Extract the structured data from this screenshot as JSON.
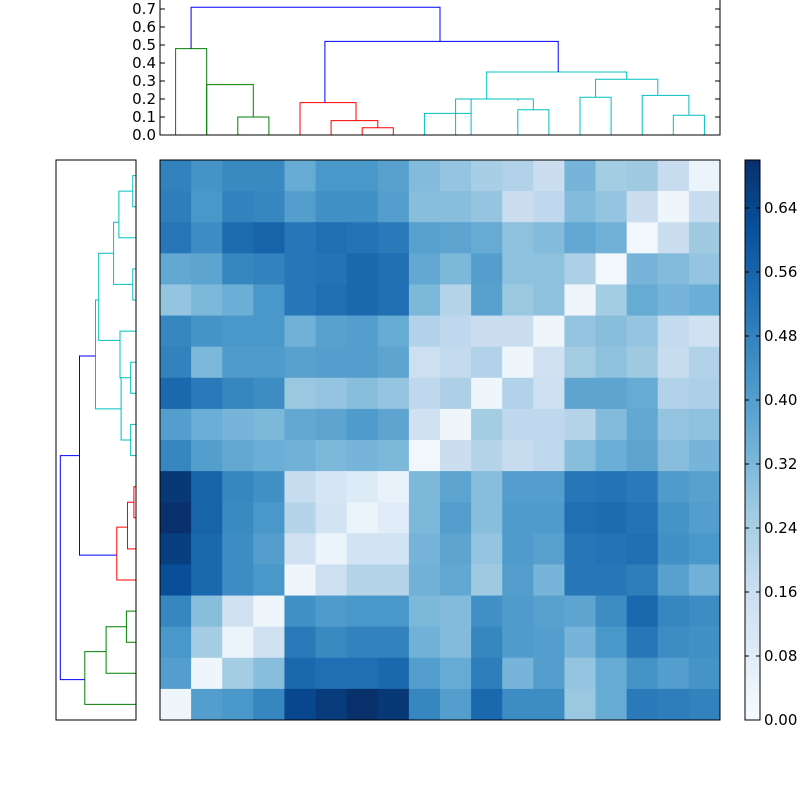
{
  "chart_data": {
    "type": "heatmap",
    "title": "",
    "xlabel": "",
    "ylabel": "",
    "colormap": "Blues",
    "colorbar": {
      "vmin": 0.0,
      "vmax": 0.7,
      "ticks": [
        0.0,
        0.08,
        0.16,
        0.24,
        0.32,
        0.4,
        0.48,
        0.56,
        0.64
      ],
      "tick_labels": [
        "0.00",
        "0.08",
        "0.16",
        "0.24",
        "0.32",
        "0.40",
        "0.48",
        "0.56",
        "0.64"
      ]
    },
    "matrix": [
      [
        0.48,
        0.43,
        0.46,
        0.46,
        0.36,
        0.42,
        0.42,
        0.39,
        0.31,
        0.28,
        0.24,
        0.22,
        0.16,
        0.33,
        0.25,
        0.26,
        0.17,
        0.04
      ],
      [
        0.49,
        0.42,
        0.48,
        0.47,
        0.4,
        0.44,
        0.44,
        0.4,
        0.3,
        0.3,
        0.28,
        0.16,
        0.19,
        0.31,
        0.28,
        0.16,
        0.03,
        0.17
      ],
      [
        0.51,
        0.45,
        0.54,
        0.56,
        0.51,
        0.53,
        0.52,
        0.5,
        0.39,
        0.38,
        0.36,
        0.29,
        0.31,
        0.37,
        0.34,
        0.02,
        0.16,
        0.26
      ],
      [
        0.37,
        0.38,
        0.47,
        0.48,
        0.51,
        0.52,
        0.55,
        0.53,
        0.37,
        0.32,
        0.4,
        0.29,
        0.29,
        0.23,
        0.02,
        0.33,
        0.31,
        0.28
      ],
      [
        0.28,
        0.32,
        0.35,
        0.42,
        0.51,
        0.53,
        0.55,
        0.53,
        0.32,
        0.21,
        0.39,
        0.27,
        0.29,
        0.03,
        0.25,
        0.36,
        0.33,
        0.35
      ],
      [
        0.47,
        0.43,
        0.42,
        0.42,
        0.34,
        0.39,
        0.4,
        0.36,
        0.22,
        0.19,
        0.16,
        0.16,
        0.03,
        0.28,
        0.3,
        0.28,
        0.18,
        0.14
      ],
      [
        0.48,
        0.32,
        0.41,
        0.41,
        0.39,
        0.4,
        0.4,
        0.38,
        0.15,
        0.18,
        0.22,
        0.03,
        0.14,
        0.25,
        0.29,
        0.26,
        0.17,
        0.22
      ],
      [
        0.55,
        0.5,
        0.47,
        0.45,
        0.27,
        0.28,
        0.3,
        0.28,
        0.19,
        0.23,
        0.03,
        0.22,
        0.15,
        0.38,
        0.38,
        0.36,
        0.22,
        0.23
      ],
      [
        0.4,
        0.35,
        0.33,
        0.32,
        0.37,
        0.38,
        0.41,
        0.38,
        0.14,
        0.03,
        0.25,
        0.19,
        0.19,
        0.21,
        0.31,
        0.37,
        0.28,
        0.29
      ],
      [
        0.47,
        0.4,
        0.37,
        0.35,
        0.34,
        0.32,
        0.33,
        0.32,
        0.02,
        0.16,
        0.21,
        0.17,
        0.19,
        0.3,
        0.35,
        0.38,
        0.3,
        0.33
      ],
      [
        0.68,
        0.56,
        0.47,
        0.44,
        0.17,
        0.12,
        0.09,
        0.05,
        0.32,
        0.38,
        0.3,
        0.4,
        0.4,
        0.51,
        0.52,
        0.5,
        0.41,
        0.39
      ],
      [
        0.7,
        0.56,
        0.46,
        0.42,
        0.21,
        0.13,
        0.04,
        0.08,
        0.32,
        0.4,
        0.3,
        0.41,
        0.41,
        0.53,
        0.54,
        0.52,
        0.43,
        0.4
      ],
      [
        0.66,
        0.55,
        0.45,
        0.4,
        0.14,
        0.04,
        0.13,
        0.13,
        0.33,
        0.38,
        0.28,
        0.41,
        0.39,
        0.51,
        0.52,
        0.53,
        0.44,
        0.42
      ],
      [
        0.62,
        0.55,
        0.45,
        0.42,
        0.03,
        0.15,
        0.21,
        0.21,
        0.34,
        0.37,
        0.26,
        0.4,
        0.33,
        0.51,
        0.51,
        0.49,
        0.39,
        0.34
      ],
      [
        0.47,
        0.3,
        0.14,
        0.03,
        0.44,
        0.41,
        0.42,
        0.42,
        0.32,
        0.31,
        0.44,
        0.41,
        0.39,
        0.38,
        0.45,
        0.55,
        0.47,
        0.45
      ],
      [
        0.42,
        0.25,
        0.04,
        0.14,
        0.5,
        0.46,
        0.48,
        0.48,
        0.34,
        0.31,
        0.47,
        0.41,
        0.4,
        0.33,
        0.42,
        0.51,
        0.45,
        0.44
      ],
      [
        0.4,
        0.03,
        0.25,
        0.3,
        0.55,
        0.53,
        0.53,
        0.55,
        0.4,
        0.36,
        0.49,
        0.33,
        0.4,
        0.28,
        0.36,
        0.43,
        0.4,
        0.43
      ],
      [
        0.03,
        0.4,
        0.42,
        0.47,
        0.64,
        0.67,
        0.7,
        0.68,
        0.47,
        0.4,
        0.55,
        0.45,
        0.45,
        0.27,
        0.36,
        0.5,
        0.49,
        0.48
      ]
    ],
    "top_dendrogram": {
      "ylim": [
        0.0,
        0.75
      ],
      "yticks": [
        0.0,
        0.1,
        0.2,
        0.3,
        0.4,
        0.5,
        0.6,
        0.7
      ],
      "ytick_labels": [
        "0.0",
        "0.1",
        "0.2",
        "0.3",
        "0.4",
        "0.5",
        "0.6",
        "0.7"
      ],
      "links": [
        {
          "x": [
            0.5,
            0.5,
            1.5,
            1.5
          ],
          "y": [
            0.0,
            0.48,
            0.48,
            0.0
          ],
          "color": "#008000"
        },
        {
          "x": [
            1.5,
            1.5,
            3.0,
            3.0
          ],
          "y": [
            0.0,
            0.28,
            0.28,
            0.1
          ],
          "color": "#008000"
        },
        {
          "x": [
            2.5,
            2.5,
            3.5,
            3.5
          ],
          "y": [
            0.0,
            0.1,
            0.1,
            0.0
          ],
          "color": "#008000"
        },
        {
          "x": [
            4.5,
            4.5,
            6.3,
            6.3
          ],
          "y": [
            0.0,
            0.18,
            0.18,
            0.08
          ],
          "color": "#ff0000"
        },
        {
          "x": [
            5.5,
            5.5,
            7.0,
            7.0
          ],
          "y": [
            0.0,
            0.08,
            0.08,
            0.04
          ],
          "color": "#ff0000"
        },
        {
          "x": [
            6.5,
            6.5,
            7.5,
            7.5
          ],
          "y": [
            0.0,
            0.04,
            0.04,
            0.0
          ],
          "color": "#ff0000"
        },
        {
          "x": [
            8.5,
            8.5,
            10.0,
            10.0
          ],
          "y": [
            0.0,
            0.12,
            0.12,
            0.0
          ],
          "color": "#00bfbf"
        },
        {
          "x": [
            9.5,
            9.5,
            11.5,
            11.5
          ],
          "y": [
            0.0,
            0.2,
            0.2,
            0.19
          ],
          "color": "#00bfbf"
        },
        {
          "x": [
            10.0,
            10.0,
            12.0,
            12.0
          ],
          "y": [
            0.12,
            0.2,
            0.2,
            0.14
          ],
          "color": "#00bfbf"
        },
        {
          "x": [
            11.5,
            11.5,
            12.5,
            12.5
          ],
          "y": [
            0.0,
            0.14,
            0.14,
            0.0
          ],
          "color": "#00bfbf"
        },
        {
          "x": [
            13.5,
            13.5,
            14.5,
            14.5
          ],
          "y": [
            0.0,
            0.21,
            0.21,
            0.0
          ],
          "color": "#00bfbf"
        },
        {
          "x": [
            14.0,
            14.0,
            16.0,
            16.0
          ],
          "y": [
            0.21,
            0.31,
            0.31,
            0.22
          ],
          "color": "#00bfbf"
        },
        {
          "x": [
            15.5,
            15.5,
            17.0,
            17.0
          ],
          "y": [
            0.0,
            0.22,
            0.22,
            0.11
          ],
          "color": "#00bfbf"
        },
        {
          "x": [
            16.5,
            16.5,
            17.5,
            17.5
          ],
          "y": [
            0.0,
            0.11,
            0.11,
            0.0
          ],
          "color": "#00bfbf"
        },
        {
          "x": [
            10.5,
            10.5,
            15.0,
            15.0
          ],
          "y": [
            0.2,
            0.35,
            0.35,
            0.31
          ],
          "color": "#00bfbf"
        },
        {
          "x": [
            5.3,
            5.3,
            12.8,
            12.8
          ],
          "y": [
            0.18,
            0.52,
            0.52,
            0.35
          ],
          "color": "#0000ff"
        },
        {
          "x": [
            1.0,
            1.0,
            9.0,
            9.0
          ],
          "y": [
            0.48,
            0.71,
            0.71,
            0.52
          ],
          "color": "#0000ff"
        }
      ]
    },
    "left_dendrogram": {
      "xlim": [
        0.75,
        0.0
      ],
      "links": [
        {
          "y": [
            0.5,
            0.5,
            1.5,
            1.5
          ],
          "x": [
            0.0,
            0.03,
            0.03,
            0.0
          ],
          "color": "#00bfbf"
        },
        {
          "y": [
            1.0,
            1.0,
            2.5,
            2.5
          ],
          "x": [
            0.03,
            0.16,
            0.16,
            0.0
          ],
          "color": "#00bfbf"
        },
        {
          "y": [
            2.0,
            2.0,
            4.0,
            4.0
          ],
          "x": [
            0.16,
            0.21,
            0.21,
            0.03
          ],
          "color": "#00bfbf"
        },
        {
          "y": [
            3.5,
            3.5,
            4.5,
            4.5
          ],
          "x": [
            0.0,
            0.03,
            0.03,
            0.0
          ],
          "color": "#00bfbf"
        },
        {
          "y": [
            3.0,
            3.0,
            5.8,
            5.8
          ],
          "x": [
            0.21,
            0.35,
            0.35,
            0.15
          ],
          "color": "#00bfbf"
        },
        {
          "y": [
            5.5,
            5.5,
            7.0,
            7.0
          ],
          "x": [
            0.0,
            0.15,
            0.15,
            0.05
          ],
          "color": "#00bfbf"
        },
        {
          "y": [
            6.5,
            6.5,
            7.5,
            7.5
          ],
          "x": [
            0.0,
            0.05,
            0.05,
            0.0
          ],
          "color": "#00bfbf"
        },
        {
          "y": [
            4.5,
            4.5,
            8.0,
            8.0
          ],
          "x": [
            0.35,
            0.38,
            0.38,
            0.14
          ],
          "color": "#00bfbf"
        },
        {
          "y": [
            7.0,
            7.0,
            9.0,
            9.0
          ],
          "x": [
            0.15,
            0.14,
            0.14,
            0.05
          ],
          "color": "#00bfbf"
        },
        {
          "y": [
            8.5,
            8.5,
            9.5,
            9.5
          ],
          "x": [
            0.0,
            0.05,
            0.05,
            0.0
          ],
          "color": "#00bfbf"
        },
        {
          "y": [
            10.5,
            10.5,
            11.5,
            11.5
          ],
          "x": [
            0.0,
            0.02,
            0.02,
            0.0
          ],
          "color": "#ff0000"
        },
        {
          "y": [
            11.0,
            11.0,
            12.5,
            12.5
          ],
          "x": [
            0.02,
            0.08,
            0.08,
            0.0
          ],
          "color": "#ff0000"
        },
        {
          "y": [
            11.8,
            11.8,
            13.5,
            13.5
          ],
          "x": [
            0.08,
            0.18,
            0.18,
            0.0
          ],
          "color": "#ff0000"
        },
        {
          "y": [
            14.5,
            14.5,
            15.5,
            15.5
          ],
          "x": [
            0.0,
            0.09,
            0.09,
            0.0
          ],
          "color": "#008000"
        },
        {
          "y": [
            15.0,
            15.0,
            16.5,
            16.5
          ],
          "x": [
            0.09,
            0.28,
            0.28,
            0.0
          ],
          "color": "#008000"
        },
        {
          "y": [
            15.8,
            15.8,
            17.5,
            17.5
          ],
          "x": [
            0.28,
            0.48,
            0.48,
            0.0
          ],
          "color": "#008000"
        },
        {
          "y": [
            6.3,
            6.3,
            12.7,
            12.7
          ],
          "x": [
            0.38,
            0.53,
            0.53,
            0.18
          ],
          "color": "#0000ff"
        },
        {
          "y": [
            9.5,
            9.5,
            16.7,
            16.7
          ],
          "x": [
            0.53,
            0.71,
            0.71,
            0.48
          ],
          "color": "#0000ff"
        }
      ]
    }
  }
}
